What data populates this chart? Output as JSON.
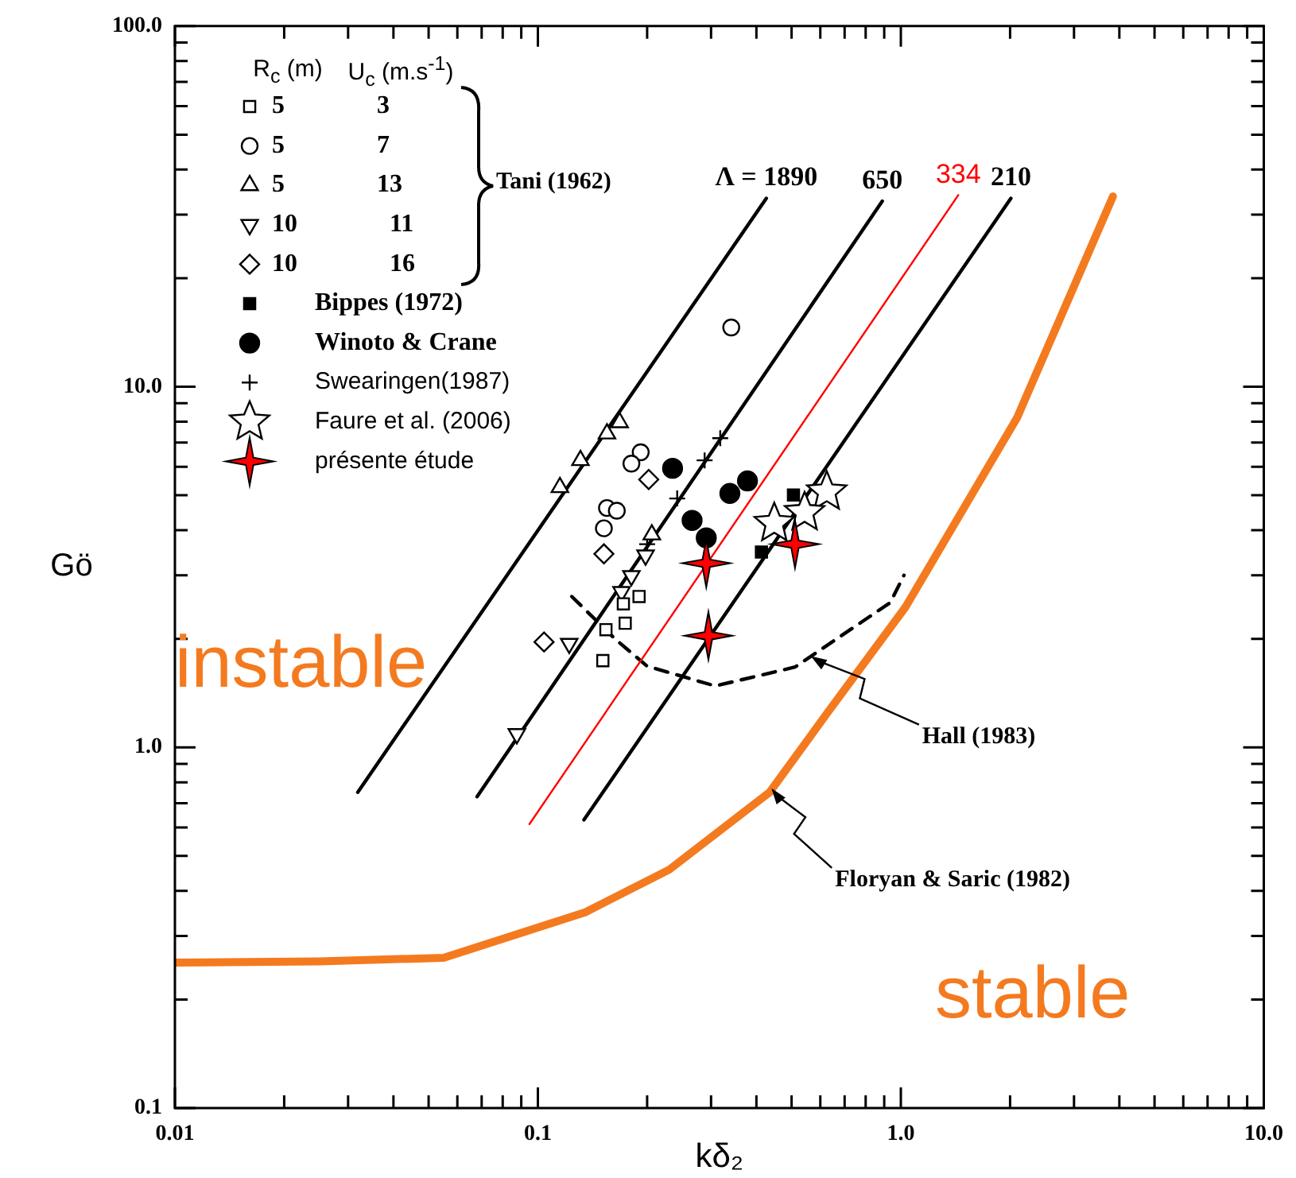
{
  "chart_data": {
    "type": "scatter",
    "xlabel": "kδ₂",
    "ylabel": "Gö",
    "log": "xy",
    "legend": "top left",
    "xlim": [
      0.01,
      10
    ],
    "ylim": [
      0.1,
      100
    ],
    "xticks": [
      0.01,
      {
        "value": 0.02,
        "label": null
      },
      {
        "value": 0.03,
        "label": null
      },
      {
        "value": 0.04,
        "label": null
      },
      {
        "value": 0.05,
        "label": null
      },
      {
        "value": 0.06,
        "label": null
      },
      {
        "value": 0.07,
        "label": null
      },
      {
        "value": 0.08,
        "label": null
      },
      {
        "value": 0.09,
        "label": null
      },
      0.1,
      {
        "value": 0.2,
        "label": null
      },
      {
        "value": 0.3,
        "label": null
      },
      {
        "value": 0.4,
        "label": null
      },
      {
        "value": 0.5,
        "label": null
      },
      {
        "value": 0.6,
        "label": null
      },
      {
        "value": 0.7,
        "label": null
      },
      {
        "value": 0.8,
        "label": null
      },
      {
        "value": 0.9,
        "label": null
      },
      {
        "value": 1,
        "label": "1.0"
      },
      {
        "value": 2,
        "label": null
      },
      {
        "value": 3,
        "label": null
      },
      {
        "value": 4,
        "label": null
      },
      {
        "value": 5,
        "label": null
      },
      {
        "value": 6,
        "label": null
      },
      {
        "value": 7,
        "label": null
      },
      {
        "value": 8,
        "label": null
      },
      {
        "value": 9,
        "label": null
      },
      {
        "value": 10,
        "label": "10.0"
      }
    ],
    "yticks": [
      0.1,
      {
        "value": 0.2,
        "label": null
      },
      {
        "value": 0.3,
        "label": null
      },
      {
        "value": 0.4,
        "label": null
      },
      {
        "value": 0.5,
        "label": null
      },
      {
        "value": 0.6,
        "label": null
      },
      {
        "value": 0.7,
        "label": null
      },
      {
        "value": 0.8,
        "label": null
      },
      {
        "value": 0.9,
        "label": null
      },
      {
        "value": 1,
        "label": "1.0"
      },
      {
        "value": 2,
        "label": null
      },
      {
        "value": 3,
        "label": null
      },
      {
        "value": 4,
        "label": null
      },
      {
        "value": 5,
        "label": null
      },
      {
        "value": 6,
        "label": null
      },
      {
        "value": 7,
        "label": null
      },
      {
        "value": 8,
        "label": null
      },
      {
        "value": 9,
        "label": null
      },
      {
        "value": 10,
        "label": "10.0"
      },
      {
        "value": 20,
        "label": null
      },
      {
        "value": 30,
        "label": null
      },
      {
        "value": 40,
        "label": null
      },
      {
        "value": 50,
        "label": null
      },
      {
        "value": 60,
        "label": null
      },
      {
        "value": 70,
        "label": null
      },
      {
        "value": 80,
        "label": null
      },
      {
        "value": 90,
        "label": null
      },
      {
        "value": 100,
        "label": "100.0"
      }
    ],
    "series": [
      {
        "name": "5 3",
        "marker": "square",
        "color": "#000000",
        "x": [
          0.19,
          0.172,
          0.174,
          0.154,
          0.151
        ],
        "values": [
          2.62,
          2.5,
          2.21,
          2.12,
          1.74
        ]
      },
      {
        "name": "5 7",
        "marker": "circle",
        "color": "#000000",
        "x": [
          0.341,
          0.192,
          0.181,
          0.155,
          0.165,
          0.152
        ],
        "values": [
          14.6,
          6.58,
          6.12,
          4.61,
          4.53,
          4.05
        ]
      },
      {
        "name": "5 13",
        "marker": "triangle",
        "color": "#000000",
        "x": [
          0.168,
          0.155,
          0.131,
          0.115,
          0.206
        ],
        "values": [
          7.96,
          7.41,
          6.25,
          5.26,
          3.89
        ]
      },
      {
        "name": "10 11",
        "marker": "triangle_down",
        "color": "#000000",
        "x": [
          0.198,
          0.181,
          0.17,
          0.122,
          0.0875
        ],
        "values": [
          3.41,
          2.99,
          2.7,
          1.94,
          1.09
        ]
      },
      {
        "name": "10 16",
        "marker": "diamond",
        "color": "#000000",
        "x": [
          0.202,
          0.152,
          0.104
        ],
        "values": [
          5.53,
          3.44,
          1.96
        ]
      },
      {
        "name": "Bippes (1972)",
        "marker": "square_filled",
        "color": "#000000",
        "x": [
          0.506,
          0.413
        ],
        "values": [
          5.01,
          3.48
        ]
      },
      {
        "name": "Winoto & Crane",
        "marker": "circle_filled",
        "color": "#000000",
        "x": [
          0.235,
          0.378,
          0.338,
          0.266,
          0.291
        ],
        "values": [
          5.94,
          5.48,
          5.06,
          4.26,
          3.81
        ]
      },
      {
        "name": "Swearingen(1987)",
        "marker": "cross",
        "color": "#000000",
        "x": [
          0.318,
          0.288,
          0.242,
          0.2
        ],
        "values": [
          7.2,
          6.25,
          4.9,
          3.66
        ]
      },
      {
        "name": "Faure et al. (2006)",
        "marker": "star",
        "color": "#000000",
        "x": [
          0.625,
          0.543,
          0.448
        ],
        "values": [
          5.11,
          4.48,
          4.18
        ]
      },
      {
        "name": "présente étude",
        "marker": "star4",
        "color": "#ff0000",
        "x": [
          0.291,
          0.295,
          0.511
        ],
        "values": [
          3.24,
          2.04,
          3.66
        ]
      },
      {
        "name": "Λ = 1890",
        "type": "line",
        "color": "#000000",
        "x": [
          0.0319,
          0.426
        ],
        "values": [
          0.751,
          33.3
        ]
      },
      {
        "name": "650",
        "type": "line",
        "color": "#000000",
        "x": [
          0.068,
          0.889
        ],
        "values": [
          0.73,
          32.7
        ]
      },
      {
        "name": "334",
        "type": "line",
        "color": "#ff0000",
        "x": [
          0.0948,
          1.44
        ],
        "values": [
          0.613,
          34
        ]
      },
      {
        "name": "210",
        "type": "line",
        "color": "#000000",
        "x": [
          0.134,
          2.01
        ],
        "values": [
          0.63,
          33.3
        ]
      },
      {
        "type": "line",
        "line_style": "dashed",
        "color": "#000000",
        "x": [
          0.124,
          0.163,
          0.2,
          0.308,
          0.511,
          0.935,
          1.02
        ],
        "values": [
          2.62,
          2.0,
          1.68,
          1.48,
          1.67,
          2.52,
          3.0
        ]
      },
      {
        "type": "line",
        "color": "#f47a20",
        "x": [
          0.01,
          0.025,
          0.055,
          0.135,
          0.23,
          0.435,
          0.625,
          1.03,
          2.09,
          3.84
        ],
        "values": [
          0.253,
          0.255,
          0.261,
          0.349,
          0.458,
          0.751,
          1.24,
          2.45,
          8.2,
          33.7
        ]
      }
    ],
    "annotations": [
      "R$_{c}$ (m)",
      "U$_{c}$ (m.s$^{-1}$)",
      "Tani (1962)",
      "instable",
      "stable",
      {
        "text": "Hall (1983)",
        "x": 0.565,
        "y": 1.79
      },
      {
        "text": "Floryan & Saric (1982)",
        "x": 0.44,
        "y": 0.77
      }
    ]
  }
}
